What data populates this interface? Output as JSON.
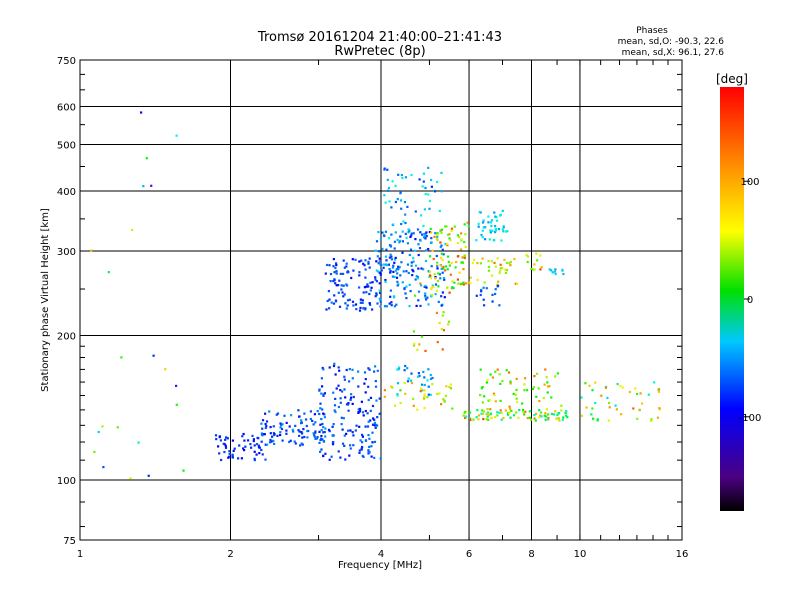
{
  "chart_data": {
    "type": "scatter",
    "title": "Tromsø 20161204 21:40:00–21:41:43",
    "subtitle": "RwPretec (8p)",
    "xlabel": "Frequency [MHz]",
    "ylabel": "Stationary phase Virtual Height [km]",
    "x_scale": "log",
    "y_scale": "log",
    "xlim": [
      1,
      16
    ],
    "ylim": [
      75,
      750
    ],
    "x_ticks": [
      1,
      2,
      4,
      6,
      8,
      10,
      16
    ],
    "x_tick_labels": [
      "1",
      "2",
      "4",
      "6",
      "8",
      "10",
      "16"
    ],
    "y_ticks": [
      75,
      100,
      200,
      300,
      400,
      500,
      600,
      750
    ],
    "y_tick_labels": [
      "75",
      "100",
      "200",
      "300",
      "400",
      "500",
      "600",
      "750"
    ],
    "grid": true,
    "stats": {
      "heading": "Phases",
      "line_o": "mean, sd,O: -90.3, 22.6",
      "line_x": "mean, sd,X: 96.1, 27.6"
    },
    "colorbar": {
      "label": "[deg]",
      "min": -180,
      "max": 180,
      "ticks": [
        100,
        0,
        -100
      ],
      "tick_labels": [
        "100",
        "0",
        "-100"
      ],
      "colormap": "rainbow (black→purple→blue→cyan→green→yellow→orange→red)"
    },
    "clusters": [
      {
        "x": [
          1.85,
          2.35
        ],
        "y": [
          110,
          125
        ],
        "phase": [
          -125,
          -95
        ],
        "n": 60
      },
      {
        "x": [
          2.3,
          3.1
        ],
        "y": [
          118,
          140
        ],
        "phase": [
          -120,
          -75
        ],
        "n": 100
      },
      {
        "x": [
          3.0,
          4.0
        ],
        "y": [
          110,
          175
        ],
        "phase": [
          -125,
          -80
        ],
        "n": 170
      },
      {
        "x": [
          3.1,
          4.0
        ],
        "y": [
          225,
          290
        ],
        "phase": [
          -125,
          -85
        ],
        "n": 110
      },
      {
        "x": [
          3.9,
          5.4
        ],
        "y": [
          230,
          330
        ],
        "phase": [
          -125,
          -55
        ],
        "n": 190
      },
      {
        "x": [
          4.0,
          5.3
        ],
        "y": [
          310,
          450
        ],
        "phase": [
          -110,
          -35
        ],
        "n": 70
      },
      {
        "x": [
          4.3,
          5.1
        ],
        "y": [
          150,
          175
        ],
        "phase": [
          -100,
          -40
        ],
        "n": 30
      },
      {
        "x": [
          4.0,
          5.6
        ],
        "y": [
          140,
          160
        ],
        "phase": [
          40,
          150
        ],
        "n": 35
      },
      {
        "x": [
          5.0,
          6.0
        ],
        "y": [
          250,
          345
        ],
        "phase": [
          10,
          160
        ],
        "n": 90
      },
      {
        "x": [
          4.6,
          5.5
        ],
        "y": [
          180,
          260
        ],
        "phase": [
          50,
          160
        ],
        "n": 25
      },
      {
        "x": [
          6.2,
          7.2
        ],
        "y": [
          315,
          365
        ],
        "phase": [
          -80,
          -30
        ],
        "n": 45
      },
      {
        "x": [
          6.0,
          7.5
        ],
        "y": [
          255,
          290
        ],
        "phase": [
          60,
          150
        ],
        "n": 35
      },
      {
        "x": [
          6.2,
          6.9
        ],
        "y": [
          230,
          255
        ],
        "phase": [
          -110,
          -80
        ],
        "n": 15
      },
      {
        "x": [
          5.8,
          9.5
        ],
        "y": [
          133,
          140
        ],
        "phase": [
          -40,
          160
        ],
        "n": 90
      },
      {
        "x": [
          6.2,
          9.2
        ],
        "y": [
          140,
          170
        ],
        "phase": [
          20,
          150
        ],
        "n": 60
      },
      {
        "x": [
          10.0,
          14.5
        ],
        "y": [
          133,
          160
        ],
        "phase": [
          -60,
          150
        ],
        "n": 45
      },
      {
        "x": [
          8.6,
          9.4
        ],
        "y": [
          268,
          275
        ],
        "phase": [
          -75,
          -55
        ],
        "n": 10
      },
      {
        "x": [
          7.8,
          8.4
        ],
        "y": [
          270,
          300
        ],
        "phase": [
          30,
          160
        ],
        "n": 12
      },
      {
        "x": [
          1.0,
          1.7
        ],
        "y": [
          100,
          600
        ],
        "phase": [
          -160,
          160
        ],
        "n": 22
      }
    ]
  }
}
